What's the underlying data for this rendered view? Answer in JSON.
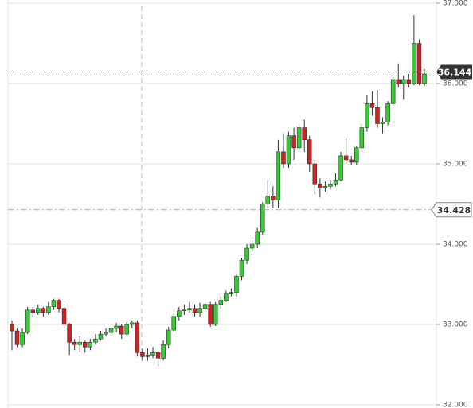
{
  "chart_data": {
    "type": "candlestick",
    "open": [
      33.0,
      32.92,
      32.75,
      32.9,
      33.18,
      33.15,
      33.2,
      33.15,
      33.22,
      33.3,
      33.2,
      33.0,
      32.78,
      32.75,
      32.78,
      32.72,
      32.78,
      32.82,
      32.88,
      32.9,
      32.95,
      32.98,
      32.88,
      33.0,
      33.02,
      32.65,
      32.6,
      32.62,
      32.65,
      32.58,
      32.75,
      32.93,
      33.1,
      33.17,
      33.18,
      33.2,
      33.15,
      33.2,
      33.25,
      33.0,
      33.25,
      33.3,
      33.38,
      33.4,
      33.6,
      33.8,
      33.95,
      34.0,
      34.15,
      34.5,
      34.6,
      34.55,
      35.15,
      35.0,
      35.35,
      35.2,
      35.45,
      35.3,
      35.0,
      34.75,
      34.7,
      34.72,
      34.75,
      34.8,
      35.1,
      35.05,
      35.02,
      35.2,
      35.45,
      35.75,
      35.7,
      35.5,
      35.52,
      35.75,
      36.05,
      36.0,
      36.05,
      36.0,
      36.5,
      36.0
    ],
    "high": [
      33.05,
      32.95,
      32.95,
      33.22,
      33.22,
      33.25,
      33.22,
      33.28,
      33.32,
      33.32,
      33.25,
      33.02,
      32.82,
      32.85,
      32.8,
      32.82,
      32.88,
      32.92,
      32.95,
      33.0,
      33.02,
      33.0,
      33.03,
      33.05,
      33.05,
      32.7,
      32.7,
      32.72,
      32.68,
      32.8,
      32.97,
      33.15,
      33.22,
      33.25,
      33.28,
      33.25,
      33.27,
      33.3,
      33.28,
      33.28,
      33.35,
      33.42,
      33.45,
      33.62,
      33.83,
      34.0,
      34.05,
      34.2,
      34.52,
      34.8,
      34.72,
      35.3,
      35.38,
      35.4,
      35.45,
      35.5,
      35.55,
      35.35,
      35.05,
      34.82,
      34.78,
      34.8,
      34.88,
      35.15,
      35.35,
      35.1,
      35.22,
      35.5,
      35.85,
      35.9,
      35.92,
      35.58,
      35.78,
      36.08,
      36.25,
      36.1,
      36.12,
      36.85,
      36.55,
      36.18
    ],
    "low": [
      32.68,
      32.72,
      32.72,
      32.88,
      33.1,
      33.12,
      33.1,
      33.12,
      33.18,
      33.15,
      32.95,
      32.62,
      32.68,
      32.65,
      32.65,
      32.68,
      32.75,
      32.8,
      32.85,
      32.85,
      32.9,
      32.82,
      32.85,
      32.95,
      32.6,
      32.55,
      32.55,
      32.58,
      32.48,
      32.55,
      32.7,
      32.9,
      33.05,
      33.12,
      33.15,
      33.1,
      33.1,
      33.18,
      32.97,
      32.98,
      33.2,
      33.28,
      33.35,
      33.35,
      33.55,
      33.75,
      33.9,
      33.95,
      34.12,
      34.45,
      34.45,
      34.45,
      34.95,
      34.95,
      35.05,
      35.15,
      35.15,
      34.9,
      34.62,
      34.58,
      34.65,
      34.68,
      34.72,
      34.78,
      35.0,
      34.98,
      34.98,
      35.15,
      35.4,
      35.6,
      35.45,
      35.38,
      35.48,
      35.72,
      35.95,
      35.8,
      35.95,
      35.98,
      35.98,
      35.97
    ],
    "close": [
      32.92,
      32.75,
      32.9,
      33.18,
      33.15,
      33.2,
      33.15,
      33.22,
      33.3,
      33.2,
      33.0,
      32.78,
      32.75,
      32.78,
      32.72,
      32.78,
      32.82,
      32.88,
      32.9,
      32.95,
      32.98,
      32.88,
      33.0,
      33.02,
      32.65,
      32.6,
      32.62,
      32.65,
      32.58,
      32.75,
      32.93,
      33.1,
      33.17,
      33.18,
      33.2,
      33.15,
      33.2,
      33.25,
      33.0,
      33.25,
      33.3,
      33.38,
      33.4,
      33.6,
      33.8,
      33.95,
      34.0,
      34.15,
      34.5,
      34.6,
      34.55,
      35.15,
      35.0,
      35.35,
      35.2,
      35.45,
      35.3,
      35.0,
      34.75,
      34.7,
      34.72,
      34.75,
      34.8,
      35.1,
      35.05,
      35.02,
      35.2,
      35.45,
      35.75,
      35.7,
      35.5,
      35.52,
      35.75,
      36.05,
      36.0,
      36.05,
      36.0,
      36.5,
      36.0,
      36.12
    ],
    "up_color": "#33cc33",
    "down_color": "#cc2222",
    "ylim": [
      31.96,
      37.04
    ],
    "yticks": [
      {
        "value": 32,
        "label": "32.000"
      },
      {
        "value": 33,
        "label": "33.000"
      },
      {
        "value": 34,
        "label": "34.000"
      },
      {
        "value": 35,
        "label": "35.000"
      },
      {
        "value": 36,
        "label": "36.000"
      },
      {
        "value": 37,
        "label": "37.000"
      }
    ],
    "grid": true,
    "last_price": 36.144,
    "crosshair_price": 34.428
  }
}
